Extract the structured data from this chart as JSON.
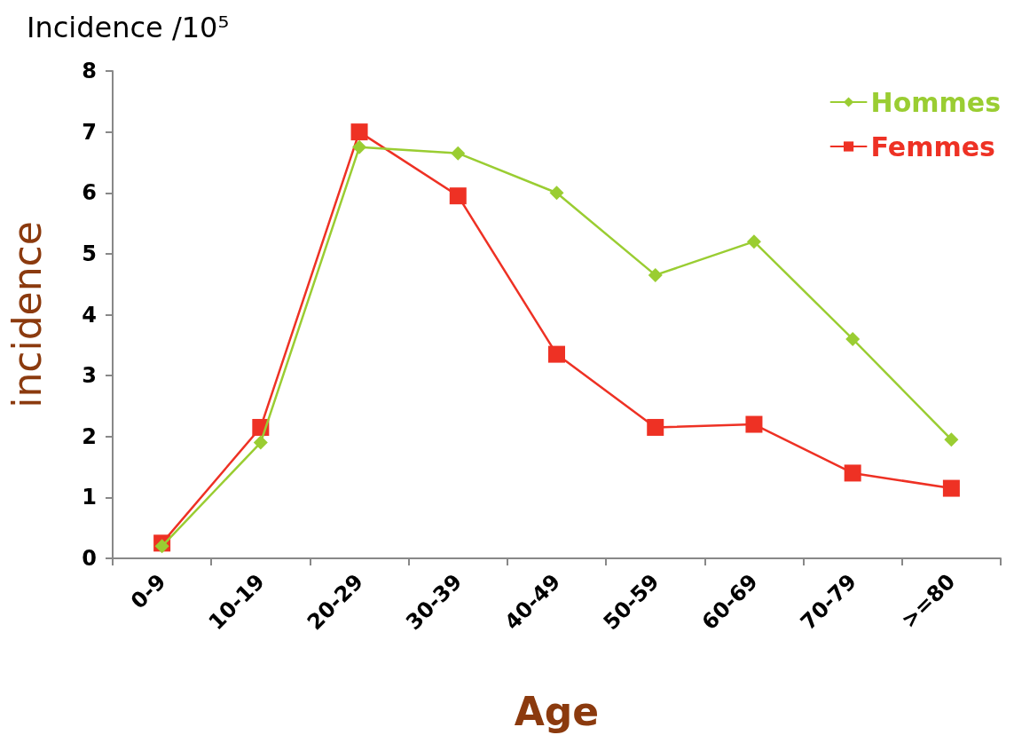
{
  "chart_data": {
    "type": "line",
    "title": "Incidence /10⁵",
    "xlabel": "Age",
    "ylabel": "incidence",
    "categories": [
      "0-9",
      "10-19",
      "20-29",
      "30-39",
      "40-49",
      "50-59",
      "60-69",
      "70-79",
      ">=80"
    ],
    "series": [
      {
        "name": "Hommes",
        "color": "#9acd32",
        "marker": "diamond",
        "values": [
          0.2,
          1.9,
          6.75,
          6.65,
          6.0,
          4.65,
          5.2,
          3.6,
          1.95
        ]
      },
      {
        "name": "Femmes",
        "color": "#ee3124",
        "marker": "square",
        "values": [
          0.25,
          2.15,
          7.0,
          5.95,
          3.35,
          2.15,
          2.2,
          1.4,
          1.15
        ]
      }
    ],
    "ylim": [
      0,
      8
    ],
    "yticks": [
      0,
      1,
      2,
      3,
      4,
      5,
      6,
      7,
      8
    ],
    "grid": false,
    "legend": "top right",
    "line_style": "solid"
  }
}
